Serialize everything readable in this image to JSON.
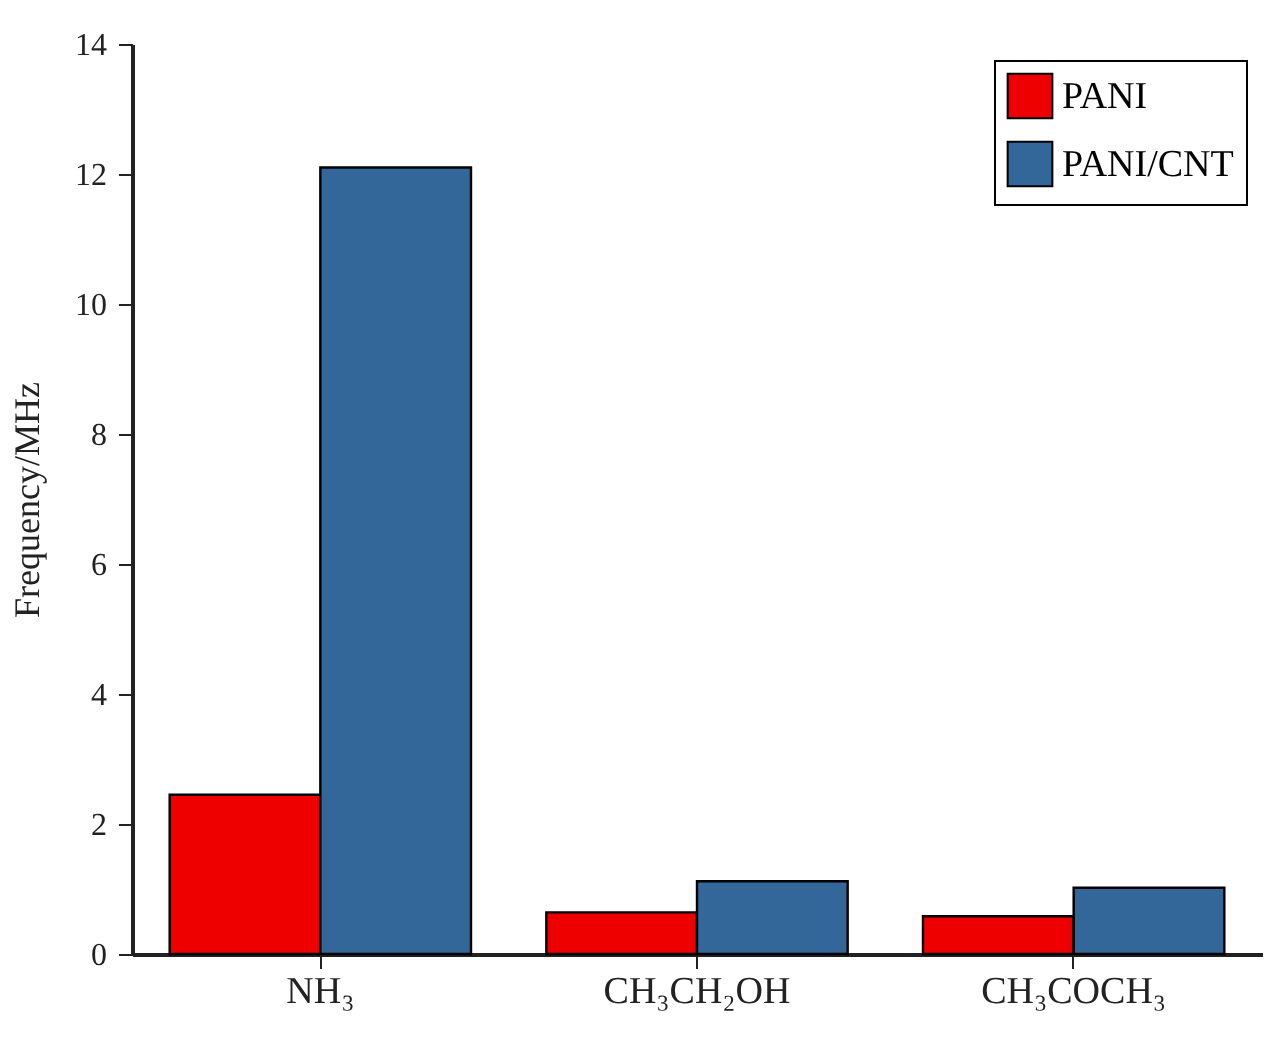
{
  "chart_data": {
    "type": "bar",
    "ylabel": "Frequency/MHz",
    "categories": [
      "NH₃",
      "CH₃CH₂OH",
      "CH₃COCH₃"
    ],
    "series": [
      {
        "name": "PANI",
        "color": "#ee0000",
        "values": [
          2.45,
          0.64,
          0.58
        ]
      },
      {
        "name": "PANI/CNT",
        "color": "#336699",
        "values": [
          12.1,
          1.12,
          1.02
        ]
      }
    ],
    "ylim": [
      0,
      14
    ],
    "yticks": [
      0,
      2,
      4,
      6,
      8,
      10,
      12,
      14
    ],
    "grid": false,
    "legend": "top right"
  }
}
